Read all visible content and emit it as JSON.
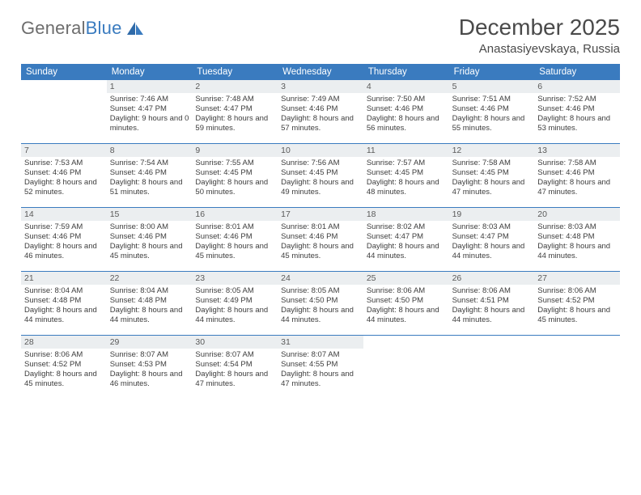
{
  "logo": {
    "word1": "General",
    "word2": "Blue"
  },
  "title": "December 2025",
  "location": "Anastasiyevskaya, Russia",
  "colors": {
    "header_bg": "#3a7bbf",
    "daynum_bg": "#ebeef0",
    "rule": "#3a7bbf",
    "text": "#3d3d3d",
    "title_text": "#4a4a4a"
  },
  "daysOfWeek": [
    "Sunday",
    "Monday",
    "Tuesday",
    "Wednesday",
    "Thursday",
    "Friday",
    "Saturday"
  ],
  "weeks": [
    [
      {
        "n": "",
        "sr": "",
        "ss": "",
        "dl": ""
      },
      {
        "n": "1",
        "sr": "Sunrise: 7:46 AM",
        "ss": "Sunset: 4:47 PM",
        "dl": "Daylight: 9 hours and 0 minutes."
      },
      {
        "n": "2",
        "sr": "Sunrise: 7:48 AM",
        "ss": "Sunset: 4:47 PM",
        "dl": "Daylight: 8 hours and 59 minutes."
      },
      {
        "n": "3",
        "sr": "Sunrise: 7:49 AM",
        "ss": "Sunset: 4:46 PM",
        "dl": "Daylight: 8 hours and 57 minutes."
      },
      {
        "n": "4",
        "sr": "Sunrise: 7:50 AM",
        "ss": "Sunset: 4:46 PM",
        "dl": "Daylight: 8 hours and 56 minutes."
      },
      {
        "n": "5",
        "sr": "Sunrise: 7:51 AM",
        "ss": "Sunset: 4:46 PM",
        "dl": "Daylight: 8 hours and 55 minutes."
      },
      {
        "n": "6",
        "sr": "Sunrise: 7:52 AM",
        "ss": "Sunset: 4:46 PM",
        "dl": "Daylight: 8 hours and 53 minutes."
      }
    ],
    [
      {
        "n": "7",
        "sr": "Sunrise: 7:53 AM",
        "ss": "Sunset: 4:46 PM",
        "dl": "Daylight: 8 hours and 52 minutes."
      },
      {
        "n": "8",
        "sr": "Sunrise: 7:54 AM",
        "ss": "Sunset: 4:46 PM",
        "dl": "Daylight: 8 hours and 51 minutes."
      },
      {
        "n": "9",
        "sr": "Sunrise: 7:55 AM",
        "ss": "Sunset: 4:45 PM",
        "dl": "Daylight: 8 hours and 50 minutes."
      },
      {
        "n": "10",
        "sr": "Sunrise: 7:56 AM",
        "ss": "Sunset: 4:45 PM",
        "dl": "Daylight: 8 hours and 49 minutes."
      },
      {
        "n": "11",
        "sr": "Sunrise: 7:57 AM",
        "ss": "Sunset: 4:45 PM",
        "dl": "Daylight: 8 hours and 48 minutes."
      },
      {
        "n": "12",
        "sr": "Sunrise: 7:58 AM",
        "ss": "Sunset: 4:45 PM",
        "dl": "Daylight: 8 hours and 47 minutes."
      },
      {
        "n": "13",
        "sr": "Sunrise: 7:58 AM",
        "ss": "Sunset: 4:46 PM",
        "dl": "Daylight: 8 hours and 47 minutes."
      }
    ],
    [
      {
        "n": "14",
        "sr": "Sunrise: 7:59 AM",
        "ss": "Sunset: 4:46 PM",
        "dl": "Daylight: 8 hours and 46 minutes."
      },
      {
        "n": "15",
        "sr": "Sunrise: 8:00 AM",
        "ss": "Sunset: 4:46 PM",
        "dl": "Daylight: 8 hours and 45 minutes."
      },
      {
        "n": "16",
        "sr": "Sunrise: 8:01 AM",
        "ss": "Sunset: 4:46 PM",
        "dl": "Daylight: 8 hours and 45 minutes."
      },
      {
        "n": "17",
        "sr": "Sunrise: 8:01 AM",
        "ss": "Sunset: 4:46 PM",
        "dl": "Daylight: 8 hours and 45 minutes."
      },
      {
        "n": "18",
        "sr": "Sunrise: 8:02 AM",
        "ss": "Sunset: 4:47 PM",
        "dl": "Daylight: 8 hours and 44 minutes."
      },
      {
        "n": "19",
        "sr": "Sunrise: 8:03 AM",
        "ss": "Sunset: 4:47 PM",
        "dl": "Daylight: 8 hours and 44 minutes."
      },
      {
        "n": "20",
        "sr": "Sunrise: 8:03 AM",
        "ss": "Sunset: 4:48 PM",
        "dl": "Daylight: 8 hours and 44 minutes."
      }
    ],
    [
      {
        "n": "21",
        "sr": "Sunrise: 8:04 AM",
        "ss": "Sunset: 4:48 PM",
        "dl": "Daylight: 8 hours and 44 minutes."
      },
      {
        "n": "22",
        "sr": "Sunrise: 8:04 AM",
        "ss": "Sunset: 4:48 PM",
        "dl": "Daylight: 8 hours and 44 minutes."
      },
      {
        "n": "23",
        "sr": "Sunrise: 8:05 AM",
        "ss": "Sunset: 4:49 PM",
        "dl": "Daylight: 8 hours and 44 minutes."
      },
      {
        "n": "24",
        "sr": "Sunrise: 8:05 AM",
        "ss": "Sunset: 4:50 PM",
        "dl": "Daylight: 8 hours and 44 minutes."
      },
      {
        "n": "25",
        "sr": "Sunrise: 8:06 AM",
        "ss": "Sunset: 4:50 PM",
        "dl": "Daylight: 8 hours and 44 minutes."
      },
      {
        "n": "26",
        "sr": "Sunrise: 8:06 AM",
        "ss": "Sunset: 4:51 PM",
        "dl": "Daylight: 8 hours and 44 minutes."
      },
      {
        "n": "27",
        "sr": "Sunrise: 8:06 AM",
        "ss": "Sunset: 4:52 PM",
        "dl": "Daylight: 8 hours and 45 minutes."
      }
    ],
    [
      {
        "n": "28",
        "sr": "Sunrise: 8:06 AM",
        "ss": "Sunset: 4:52 PM",
        "dl": "Daylight: 8 hours and 45 minutes."
      },
      {
        "n": "29",
        "sr": "Sunrise: 8:07 AM",
        "ss": "Sunset: 4:53 PM",
        "dl": "Daylight: 8 hours and 46 minutes."
      },
      {
        "n": "30",
        "sr": "Sunrise: 8:07 AM",
        "ss": "Sunset: 4:54 PM",
        "dl": "Daylight: 8 hours and 47 minutes."
      },
      {
        "n": "31",
        "sr": "Sunrise: 8:07 AM",
        "ss": "Sunset: 4:55 PM",
        "dl": "Daylight: 8 hours and 47 minutes."
      },
      {
        "n": "",
        "sr": "",
        "ss": "",
        "dl": ""
      },
      {
        "n": "",
        "sr": "",
        "ss": "",
        "dl": ""
      },
      {
        "n": "",
        "sr": "",
        "ss": "",
        "dl": ""
      }
    ]
  ]
}
